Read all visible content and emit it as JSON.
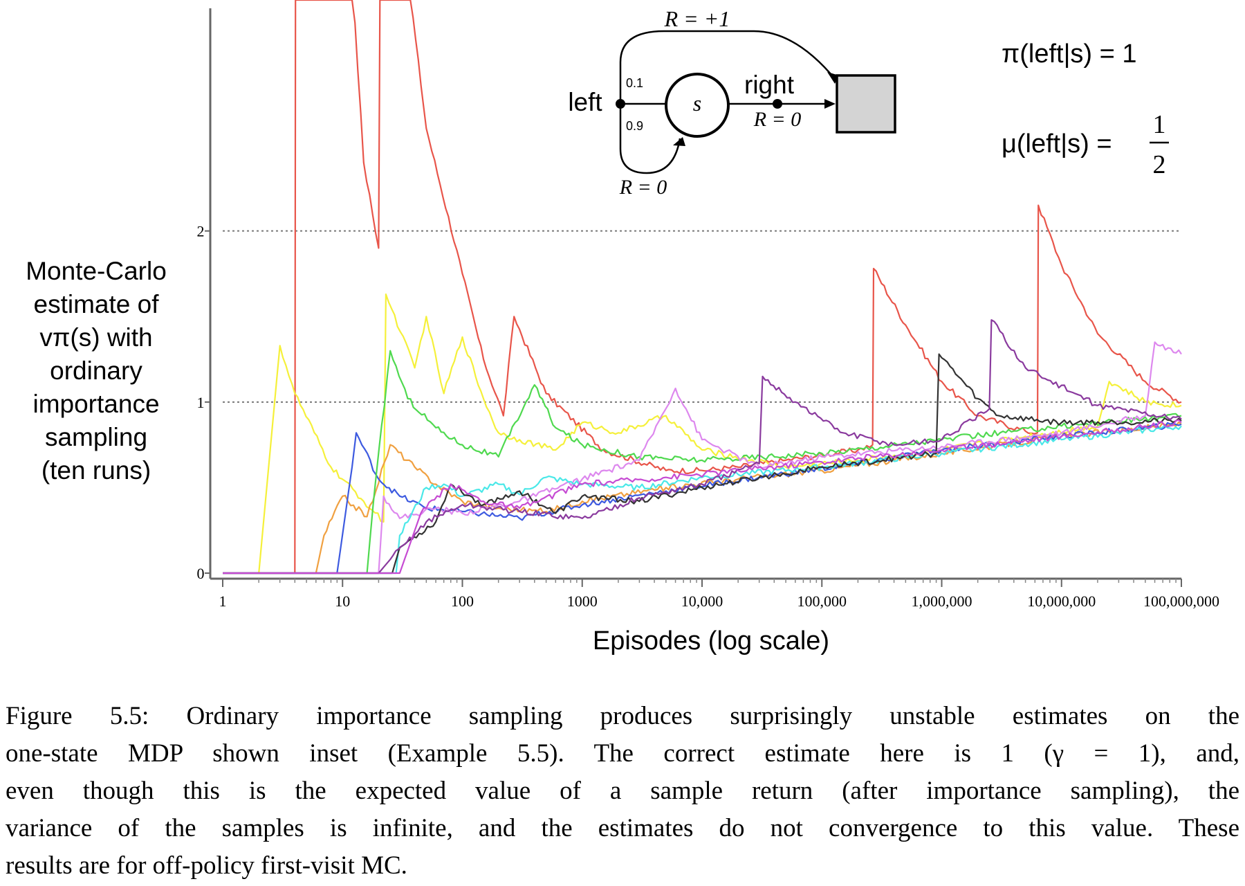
{
  "figure": {
    "caption_lines": [
      "Figure 5.5: Ordinary importance sampling produces surprisingly unstable estimates on the",
      "one-state MDP shown inset (Example 5.5).  The correct estimate here is 1 (γ = 1), and,",
      "even though this is the expected value of a sample return (after importance sampling), the",
      "variance of the samples is infinite, and the estimates do not convergence to this value. These",
      "results are for off-policy first-visit MC."
    ]
  },
  "inset": {
    "reward_top": "R = +1",
    "left_label": "left",
    "right_label": "right",
    "state_label": "s",
    "prob_top": "0.1",
    "prob_bottom": "0.9",
    "reward_right": "R = 0",
    "reward_bottom": "R = 0",
    "policy_pi": "π(left|s) = 1",
    "policy_mu_lhs": "μ(left|s) =",
    "policy_mu_num": "1",
    "policy_mu_den": "2"
  },
  "chart_data": {
    "type": "line",
    "x_scale": "log",
    "xlim": [
      1,
      100000000
    ],
    "ylim": [
      0,
      3.35
    ],
    "xlabel": "Episodes (log scale)",
    "ylabel_lines": [
      "Monte-Carlo",
      "estimate of",
      "vπ(s) with",
      "ordinary",
      "importance",
      "sampling",
      "(ten runs)"
    ],
    "x_ticks": [
      {
        "value": 1,
        "label": "1"
      },
      {
        "value": 10,
        "label": "10"
      },
      {
        "value": 100,
        "label": "100"
      },
      {
        "value": 1000,
        "label": "1000"
      },
      {
        "value": 10000,
        "label": "10,000"
      },
      {
        "value": 100000,
        "label": "100,000"
      },
      {
        "value": 1000000,
        "label": "1,000,000"
      },
      {
        "value": 10000000,
        "label": "10,000,000"
      },
      {
        "value": 100000000,
        "label": "100,000,000"
      }
    ],
    "y_ticks": [
      {
        "value": 0,
        "label": "0"
      },
      {
        "value": 1,
        "label": "1"
      },
      {
        "value": 2,
        "label": "2"
      }
    ],
    "reference_lines": [
      1,
      2
    ],
    "grid": false,
    "series": [
      {
        "color": "#e8554a",
        "points": [
          [
            1,
            0
          ],
          [
            4,
            0
          ],
          [
            4.05,
            3.5
          ],
          [
            12,
            3.5
          ],
          [
            15,
            2.4
          ],
          [
            20,
            1.9
          ],
          [
            20.5,
            3.5
          ],
          [
            35,
            3.5
          ],
          [
            50,
            2.6
          ],
          [
            100,
            1.75
          ],
          [
            150,
            1.25
          ],
          [
            220,
            0.92
          ],
          [
            270,
            1.5
          ],
          [
            500,
            1.05
          ],
          [
            1500,
            0.72
          ],
          [
            5000,
            0.6
          ],
          [
            10000,
            0.6
          ],
          [
            20000,
            0.62
          ],
          [
            50000,
            0.66
          ],
          [
            200000,
            0.72
          ],
          [
            265000,
            0.75
          ],
          [
            270000,
            1.78
          ],
          [
            500000,
            1.45
          ],
          [
            1000000,
            1.12
          ],
          [
            2000000,
            0.92
          ],
          [
            5000000,
            0.83
          ],
          [
            6300000,
            0.82
          ],
          [
            6400000,
            2.15
          ],
          [
            10000000,
            1.8
          ],
          [
            20000000,
            1.4
          ],
          [
            50000000,
            1.12
          ],
          [
            100000000,
            1.0
          ]
        ]
      },
      {
        "color": "#f5f03a",
        "points": [
          [
            1,
            0
          ],
          [
            2,
            0
          ],
          [
            3,
            1.33
          ],
          [
            4,
            1.05
          ],
          [
            8,
            0.62
          ],
          [
            15,
            0.42
          ],
          [
            22,
            0.3
          ],
          [
            23,
            1.63
          ],
          [
            40,
            1.2
          ],
          [
            50,
            1.5
          ],
          [
            70,
            1.05
          ],
          [
            100,
            1.38
          ],
          [
            150,
            1.02
          ],
          [
            200,
            0.82
          ],
          [
            300,
            0.78
          ],
          [
            600,
            0.72
          ],
          [
            1000,
            0.88
          ],
          [
            2000,
            0.82
          ],
          [
            5000,
            0.92
          ],
          [
            10000,
            0.72
          ],
          [
            50000,
            0.62
          ],
          [
            200000,
            0.66
          ],
          [
            1000000,
            0.72
          ],
          [
            5000000,
            0.8
          ],
          [
            20000000,
            0.86
          ],
          [
            25000000,
            1.12
          ],
          [
            50000000,
            1.0
          ],
          [
            100000000,
            0.98
          ]
        ]
      },
      {
        "color": "#f0a040",
        "points": [
          [
            1,
            0
          ],
          [
            6,
            0
          ],
          [
            7,
            0.22
          ],
          [
            10,
            0.45
          ],
          [
            16,
            0.33
          ],
          [
            25,
            0.75
          ],
          [
            40,
            0.62
          ],
          [
            60,
            0.52
          ],
          [
            100,
            0.42
          ],
          [
            200,
            0.38
          ],
          [
            500,
            0.36
          ],
          [
            1000,
            0.42
          ],
          [
            5000,
            0.5
          ],
          [
            20000,
            0.55
          ],
          [
            100000,
            0.6
          ],
          [
            1000000,
            0.7
          ],
          [
            10000000,
            0.8
          ],
          [
            100000000,
            0.87
          ]
        ]
      },
      {
        "color": "#3d5ae0",
        "points": [
          [
            1,
            0
          ],
          [
            9,
            0
          ],
          [
            12,
            0.62
          ],
          [
            13,
            0.82
          ],
          [
            20,
            0.55
          ],
          [
            30,
            0.45
          ],
          [
            50,
            0.38
          ],
          [
            100,
            0.36
          ],
          [
            300,
            0.32
          ],
          [
            1000,
            0.4
          ],
          [
            5000,
            0.48
          ],
          [
            30000,
            0.56
          ],
          [
            200000,
            0.64
          ],
          [
            1000000,
            0.72
          ],
          [
            10000000,
            0.8
          ],
          [
            100000000,
            0.87
          ]
        ]
      },
      {
        "color": "#4fd94f",
        "points": [
          [
            1,
            0
          ],
          [
            16,
            0
          ],
          [
            18,
            0.4
          ],
          [
            25,
            1.3
          ],
          [
            35,
            1.02
          ],
          [
            60,
            0.85
          ],
          [
            100,
            0.75
          ],
          [
            200,
            0.68
          ],
          [
            400,
            1.1
          ],
          [
            600,
            0.85
          ],
          [
            1000,
            0.75
          ],
          [
            3000,
            0.68
          ],
          [
            10000,
            0.66
          ],
          [
            100000,
            0.7
          ],
          [
            1000000,
            0.78
          ],
          [
            10000000,
            0.86
          ],
          [
            100000000,
            0.92
          ]
        ]
      },
      {
        "color": "#dd88ee",
        "points": [
          [
            1,
            0
          ],
          [
            20,
            0
          ],
          [
            22,
            0.45
          ],
          [
            30,
            0.32
          ],
          [
            60,
            0.38
          ],
          [
            100,
            0.35
          ],
          [
            300,
            0.42
          ],
          [
            1000,
            0.55
          ],
          [
            3000,
            0.66
          ],
          [
            6000,
            1.08
          ],
          [
            10000,
            0.78
          ],
          [
            30000,
            0.62
          ],
          [
            100000,
            0.68
          ],
          [
            1000000,
            0.74
          ],
          [
            10000000,
            0.82
          ],
          [
            50000000,
            0.92
          ],
          [
            60000000,
            1.35
          ],
          [
            100000000,
            1.28
          ]
        ]
      },
      {
        "color": "#4ae8e8",
        "points": [
          [
            1,
            0
          ],
          [
            28,
            0
          ],
          [
            30,
            0.22
          ],
          [
            50,
            0.5
          ],
          [
            70,
            0.52
          ],
          [
            100,
            0.45
          ],
          [
            200,
            0.52
          ],
          [
            300,
            0.46
          ],
          [
            500,
            0.56
          ],
          [
            1000,
            0.52
          ],
          [
            3000,
            0.5
          ],
          [
            10000,
            0.56
          ],
          [
            100000,
            0.62
          ],
          [
            1000000,
            0.7
          ],
          [
            10000000,
            0.78
          ],
          [
            100000000,
            0.86
          ]
        ]
      },
      {
        "color": "#333333",
        "points": [
          [
            1,
            0
          ],
          [
            26,
            0
          ],
          [
            30,
            0.15
          ],
          [
            60,
            0.3
          ],
          [
            80,
            0.52
          ],
          [
            150,
            0.4
          ],
          [
            300,
            0.48
          ],
          [
            600,
            0.35
          ],
          [
            1000,
            0.45
          ],
          [
            3000,
            0.42
          ],
          [
            10000,
            0.5
          ],
          [
            100000,
            0.62
          ],
          [
            900000,
            0.7
          ],
          [
            950000,
            1.28
          ],
          [
            2000000,
            1.02
          ],
          [
            3000000,
            0.92
          ],
          [
            10000000,
            0.88
          ],
          [
            100000000,
            0.89
          ]
        ]
      },
      {
        "color": "#8a3a9e",
        "points": [
          [
            1,
            0
          ],
          [
            20,
            0
          ],
          [
            25,
            0.08
          ],
          [
            50,
            0.3
          ],
          [
            100,
            0.4
          ],
          [
            300,
            0.36
          ],
          [
            1000,
            0.32
          ],
          [
            3000,
            0.44
          ],
          [
            10000,
            0.52
          ],
          [
            30000,
            0.64
          ],
          [
            32000,
            1.15
          ],
          [
            60000,
            1.0
          ],
          [
            150000,
            0.82
          ],
          [
            400000,
            0.75
          ],
          [
            1000000,
            0.78
          ],
          [
            2500000,
            0.96
          ],
          [
            2600000,
            1.48
          ],
          [
            5000000,
            1.2
          ],
          [
            20000000,
            0.98
          ],
          [
            100000000,
            0.9
          ]
        ]
      },
      {
        "color": "#c64bd3",
        "points": [
          [
            1,
            0
          ],
          [
            30,
            0
          ],
          [
            45,
            0.35
          ],
          [
            80,
            0.52
          ],
          [
            150,
            0.42
          ],
          [
            300,
            0.38
          ],
          [
            1000,
            0.52
          ],
          [
            5000,
            0.56
          ],
          [
            20000,
            0.6
          ],
          [
            100000,
            0.65
          ],
          [
            1000000,
            0.72
          ],
          [
            10000000,
            0.8
          ],
          [
            100000000,
            0.88
          ]
        ]
      }
    ]
  }
}
